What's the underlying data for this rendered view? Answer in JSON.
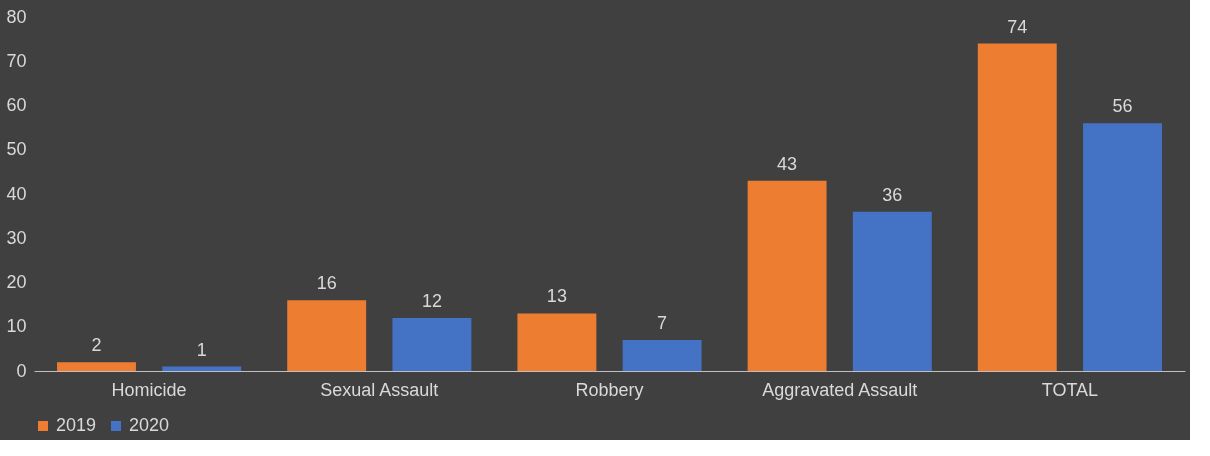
{
  "chart_data": {
    "type": "bar",
    "categories": [
      "Homicide",
      "Sexual Assault",
      "Robbery",
      "Aggravated Assault",
      "TOTAL"
    ],
    "series": [
      {
        "name": "2019",
        "color": "#ed7d31",
        "values": [
          2,
          16,
          13,
          43,
          74
        ]
      },
      {
        "name": "2020",
        "color": "#4472c4",
        "values": [
          1,
          12,
          7,
          36,
          56
        ]
      }
    ],
    "ylim": [
      0,
      80
    ],
    "yticks": [
      0,
      10,
      20,
      30,
      40,
      50,
      60,
      70,
      80
    ],
    "grid": false,
    "legend": "bottom",
    "data_labels": true
  }
}
